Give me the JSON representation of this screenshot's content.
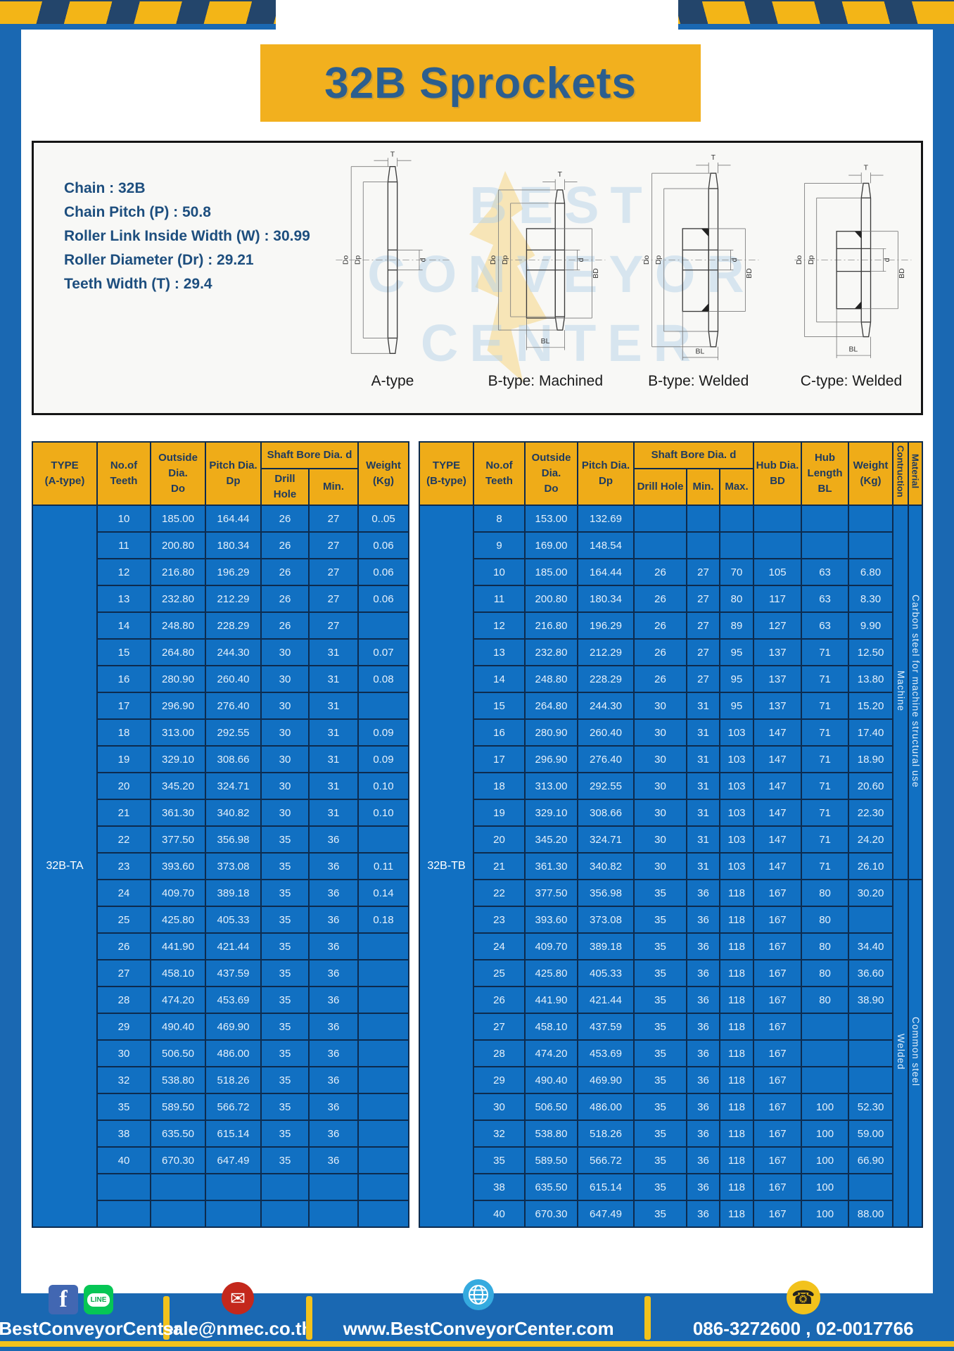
{
  "page": {
    "title": "32B Sprockets",
    "watermark": [
      "BEST",
      "CONVEYOR",
      "CENTER"
    ]
  },
  "specs": {
    "lines": [
      "Chain : 32B",
      "Chain Pitch (P) : 50.8",
      "Roller Link Inside Width (W) : 30.99",
      "Roller Diameter (Dr) : 29.21",
      "Teeth Width (T) : 29.4"
    ]
  },
  "diagram": {
    "dims": {
      "t": "T",
      "do": "Do",
      "dp": "Dp",
      "d": "d",
      "bd": "BD",
      "bl": "BL"
    },
    "captions": [
      "A-type",
      "B-type: Machined",
      "B-type: Welded",
      "C-type: Welded"
    ]
  },
  "table_a": {
    "type_label": "32B-TA",
    "headers": {
      "type": "TYPE\n(A-type)",
      "teeth": "No.of\nTeeth",
      "outside": "Outside\nDia.\nDo",
      "pitch": "Pitch Dia.\nDp",
      "shaft": "Shaft Bore Dia. d",
      "drill": "Drill Hole",
      "min": "Min.",
      "weight": "Weight\n(Kg)"
    },
    "rows": [
      [
        "10",
        "185.00",
        "164.44",
        "26",
        "27",
        "0..05"
      ],
      [
        "11",
        "200.80",
        "180.34",
        "26",
        "27",
        "0.06"
      ],
      [
        "12",
        "216.80",
        "196.29",
        "26",
        "27",
        "0.06"
      ],
      [
        "13",
        "232.80",
        "212.29",
        "26",
        "27",
        "0.06"
      ],
      [
        "14",
        "248.80",
        "228.29",
        "26",
        "27",
        ""
      ],
      [
        "15",
        "264.80",
        "244.30",
        "30",
        "31",
        "0.07"
      ],
      [
        "16",
        "280.90",
        "260.40",
        "30",
        "31",
        "0.08"
      ],
      [
        "17",
        "296.90",
        "276.40",
        "30",
        "31",
        ""
      ],
      [
        "18",
        "313.00",
        "292.55",
        "30",
        "31",
        "0.09"
      ],
      [
        "19",
        "329.10",
        "308.66",
        "30",
        "31",
        "0.09"
      ],
      [
        "20",
        "345.20",
        "324.71",
        "30",
        "31",
        "0.10"
      ],
      [
        "21",
        "361.30",
        "340.82",
        "30",
        "31",
        "0.10"
      ],
      [
        "22",
        "377.50",
        "356.98",
        "35",
        "36",
        ""
      ],
      [
        "23",
        "393.60",
        "373.08",
        "35",
        "36",
        "0.11"
      ],
      [
        "24",
        "409.70",
        "389.18",
        "35",
        "36",
        "0.14"
      ],
      [
        "25",
        "425.80",
        "405.33",
        "35",
        "36",
        "0.18"
      ],
      [
        "26",
        "441.90",
        "421.44",
        "35",
        "36",
        ""
      ],
      [
        "27",
        "458.10",
        "437.59",
        "35",
        "36",
        ""
      ],
      [
        "28",
        "474.20",
        "453.69",
        "35",
        "36",
        ""
      ],
      [
        "29",
        "490.40",
        "469.90",
        "35",
        "36",
        ""
      ],
      [
        "30",
        "506.50",
        "486.00",
        "35",
        "36",
        ""
      ],
      [
        "32",
        "538.80",
        "518.26",
        "35",
        "36",
        ""
      ],
      [
        "35",
        "589.50",
        "566.72",
        "35",
        "36",
        ""
      ],
      [
        "38",
        "635.50",
        "615.14",
        "35",
        "36",
        ""
      ],
      [
        "40",
        "670.30",
        "647.49",
        "35",
        "36",
        ""
      ],
      [
        "",
        "",
        "",
        "",
        "",
        ""
      ],
      [
        "",
        "",
        "",
        "",
        "",
        ""
      ]
    ]
  },
  "table_b": {
    "type_label": "32B-TB",
    "headers": {
      "type": "TYPE\n(B-type)",
      "teeth": "No.of\nTeeth",
      "outside": "Outside\nDia.\nDo",
      "pitch": "Pitch Dia.\nDp",
      "shaft": "Shaft Bore Dia. d",
      "drill": "Drill Hole",
      "min": "Min.",
      "max": "Max.",
      "hub_dia": "Hub Dia.\nBD",
      "hub_len": "Hub\nLength\nBL",
      "weight": "Weight\n(Kg)",
      "construction": "Contruction",
      "material": "Material"
    },
    "sections": {
      "construction": [
        {
          "label": "Machine",
          "rows": 14
        },
        {
          "label": "Welded",
          "rows": 13
        }
      ],
      "material": [
        {
          "label": "Carbon steel for machine structural use",
          "rows": 14
        },
        {
          "label": "Common steel",
          "rows": 13
        }
      ]
    },
    "rows": [
      [
        "8",
        "153.00",
        "132.69",
        "",
        "",
        "",
        "",
        "",
        ""
      ],
      [
        "9",
        "169.00",
        "148.54",
        "",
        "",
        "",
        "",
        "",
        ""
      ],
      [
        "10",
        "185.00",
        "164.44",
        "26",
        "27",
        "70",
        "105",
        "63",
        "6.80"
      ],
      [
        "11",
        "200.80",
        "180.34",
        "26",
        "27",
        "80",
        "117",
        "63",
        "8.30"
      ],
      [
        "12",
        "216.80",
        "196.29",
        "26",
        "27",
        "89",
        "127",
        "63",
        "9.90"
      ],
      [
        "13",
        "232.80",
        "212.29",
        "26",
        "27",
        "95",
        "137",
        "71",
        "12.50"
      ],
      [
        "14",
        "248.80",
        "228.29",
        "26",
        "27",
        "95",
        "137",
        "71",
        "13.80"
      ],
      [
        "15",
        "264.80",
        "244.30",
        "30",
        "31",
        "95",
        "137",
        "71",
        "15.20"
      ],
      [
        "16",
        "280.90",
        "260.40",
        "30",
        "31",
        "103",
        "147",
        "71",
        "17.40"
      ],
      [
        "17",
        "296.90",
        "276.40",
        "30",
        "31",
        "103",
        "147",
        "71",
        "18.90"
      ],
      [
        "18",
        "313.00",
        "292.55",
        "30",
        "31",
        "103",
        "147",
        "71",
        "20.60"
      ],
      [
        "19",
        "329.10",
        "308.66",
        "30",
        "31",
        "103",
        "147",
        "71",
        "22.30"
      ],
      [
        "20",
        "345.20",
        "324.71",
        "30",
        "31",
        "103",
        "147",
        "71",
        "24.20"
      ],
      [
        "21",
        "361.30",
        "340.82",
        "30",
        "31",
        "103",
        "147",
        "71",
        "26.10"
      ],
      [
        "22",
        "377.50",
        "356.98",
        "35",
        "36",
        "118",
        "167",
        "80",
        "30.20"
      ],
      [
        "23",
        "393.60",
        "373.08",
        "35",
        "36",
        "118",
        "167",
        "80",
        ""
      ],
      [
        "24",
        "409.70",
        "389.18",
        "35",
        "36",
        "118",
        "167",
        "80",
        "34.40"
      ],
      [
        "25",
        "425.80",
        "405.33",
        "35",
        "36",
        "118",
        "167",
        "80",
        "36.60"
      ],
      [
        "26",
        "441.90",
        "421.44",
        "35",
        "36",
        "118",
        "167",
        "80",
        "38.90"
      ],
      [
        "27",
        "458.10",
        "437.59",
        "35",
        "36",
        "118",
        "167",
        "",
        ""
      ],
      [
        "28",
        "474.20",
        "453.69",
        "35",
        "36",
        "118",
        "167",
        "",
        ""
      ],
      [
        "29",
        "490.40",
        "469.90",
        "35",
        "36",
        "118",
        "167",
        "",
        ""
      ],
      [
        "30",
        "506.50",
        "486.00",
        "35",
        "36",
        "118",
        "167",
        "100",
        "52.30"
      ],
      [
        "32",
        "538.80",
        "518.26",
        "35",
        "36",
        "118",
        "167",
        "100",
        "59.00"
      ],
      [
        "35",
        "589.50",
        "566.72",
        "35",
        "36",
        "118",
        "167",
        "100",
        "66.90"
      ],
      [
        "38",
        "635.50",
        "615.14",
        "35",
        "36",
        "118",
        "167",
        "100",
        ""
      ],
      [
        "40",
        "670.30",
        "647.49",
        "35",
        "36",
        "118",
        "167",
        "100",
        "88.00"
      ]
    ]
  },
  "footer": {
    "social": "@BestConveyorCenter",
    "email": "sale@nmec.co.th",
    "website": "www.BestConveyorCenter.com",
    "phone": "086-3272600 , 02-0017766",
    "facebook_glyph": "f",
    "line_label": "LINE",
    "email_glyph": "✉",
    "phone_glyph": "☎"
  },
  "colors": {
    "frame_blue": "#1a68b2",
    "navy": "#1e3a5f",
    "yellow": "#f2b01e",
    "cell_blue": "#1170c2",
    "title_navy": "#2c5e8e",
    "footer_yellow": "#f2c21c"
  }
}
